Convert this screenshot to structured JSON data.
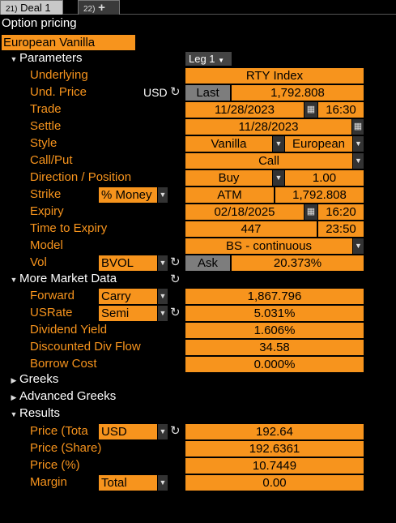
{
  "tabs": [
    {
      "num": "21)",
      "label": "Deal 1"
    },
    {
      "num": "22)",
      "label": "+"
    }
  ],
  "title": "Option pricing",
  "strategy": "European Vanilla",
  "parameters": {
    "header": "Parameters",
    "leg_select": "Leg 1",
    "underlying_label": "Underlying",
    "underlying": "RTY Index",
    "und_price_label": "Und. Price",
    "und_price_ccy": "USD",
    "und_price_source": "Last",
    "und_price": "1,792.808",
    "trade_label": "Trade",
    "trade_date": "11/28/2023",
    "trade_time": "16:30",
    "settle_label": "Settle",
    "settle_date": "11/28/2023",
    "style_label": "Style",
    "style_type": "Vanilla",
    "style_exercise": "European",
    "callput_label": "Call/Put",
    "callput": "Call",
    "direction_label": "Direction / Position",
    "direction": "Buy",
    "position": "1.00",
    "strike_label": "Strike",
    "strike_mode": "% Money",
    "strike_type": "ATM",
    "strike": "1,792.808",
    "expiry_label": "Expiry",
    "expiry_date": "02/18/2025",
    "expiry_time": "16:20",
    "tte_label": "Time to Expiry",
    "tte_days": "447",
    "tte_time": "23:50",
    "model_label": "Model",
    "model": "BS - continuous",
    "vol_label": "Vol",
    "vol_source": "BVOL",
    "vol_side": "Ask",
    "vol": "20.373%"
  },
  "market": {
    "header": "More Market Data",
    "forward_label": "Forward",
    "forward_mode": "Carry",
    "forward": "1,867.796",
    "rate_label": "USRate",
    "rate_mode": "Semi",
    "rate": "5.031%",
    "div_yield_label": "Dividend Yield",
    "div_yield": "1.606%",
    "div_flow_label": "Discounted Div Flow",
    "div_flow": "34.58",
    "borrow_label": "Borrow Cost",
    "borrow": "0.000%"
  },
  "greeks_header": "Greeks",
  "adv_greeks_header": "Advanced Greeks",
  "results": {
    "header": "Results",
    "price_total_label": "Price (Tota",
    "price_total_ccy": "USD",
    "price_total": "192.64",
    "price_share_label": "Price (Share)",
    "price_share": "192.6361",
    "price_pct_label": "Price (%)",
    "price_pct": "10.7449",
    "margin_label": "Margin",
    "margin_mode": "Total",
    "margin": "0.00"
  },
  "colors": {
    "accent": "#f7941d",
    "background": "#000000",
    "grey_button": "#7d7d7d"
  },
  "icons": {
    "refresh": "refresh-icon",
    "calendar": "calendar-icon",
    "dropdown": "chevron-down-icon"
  }
}
